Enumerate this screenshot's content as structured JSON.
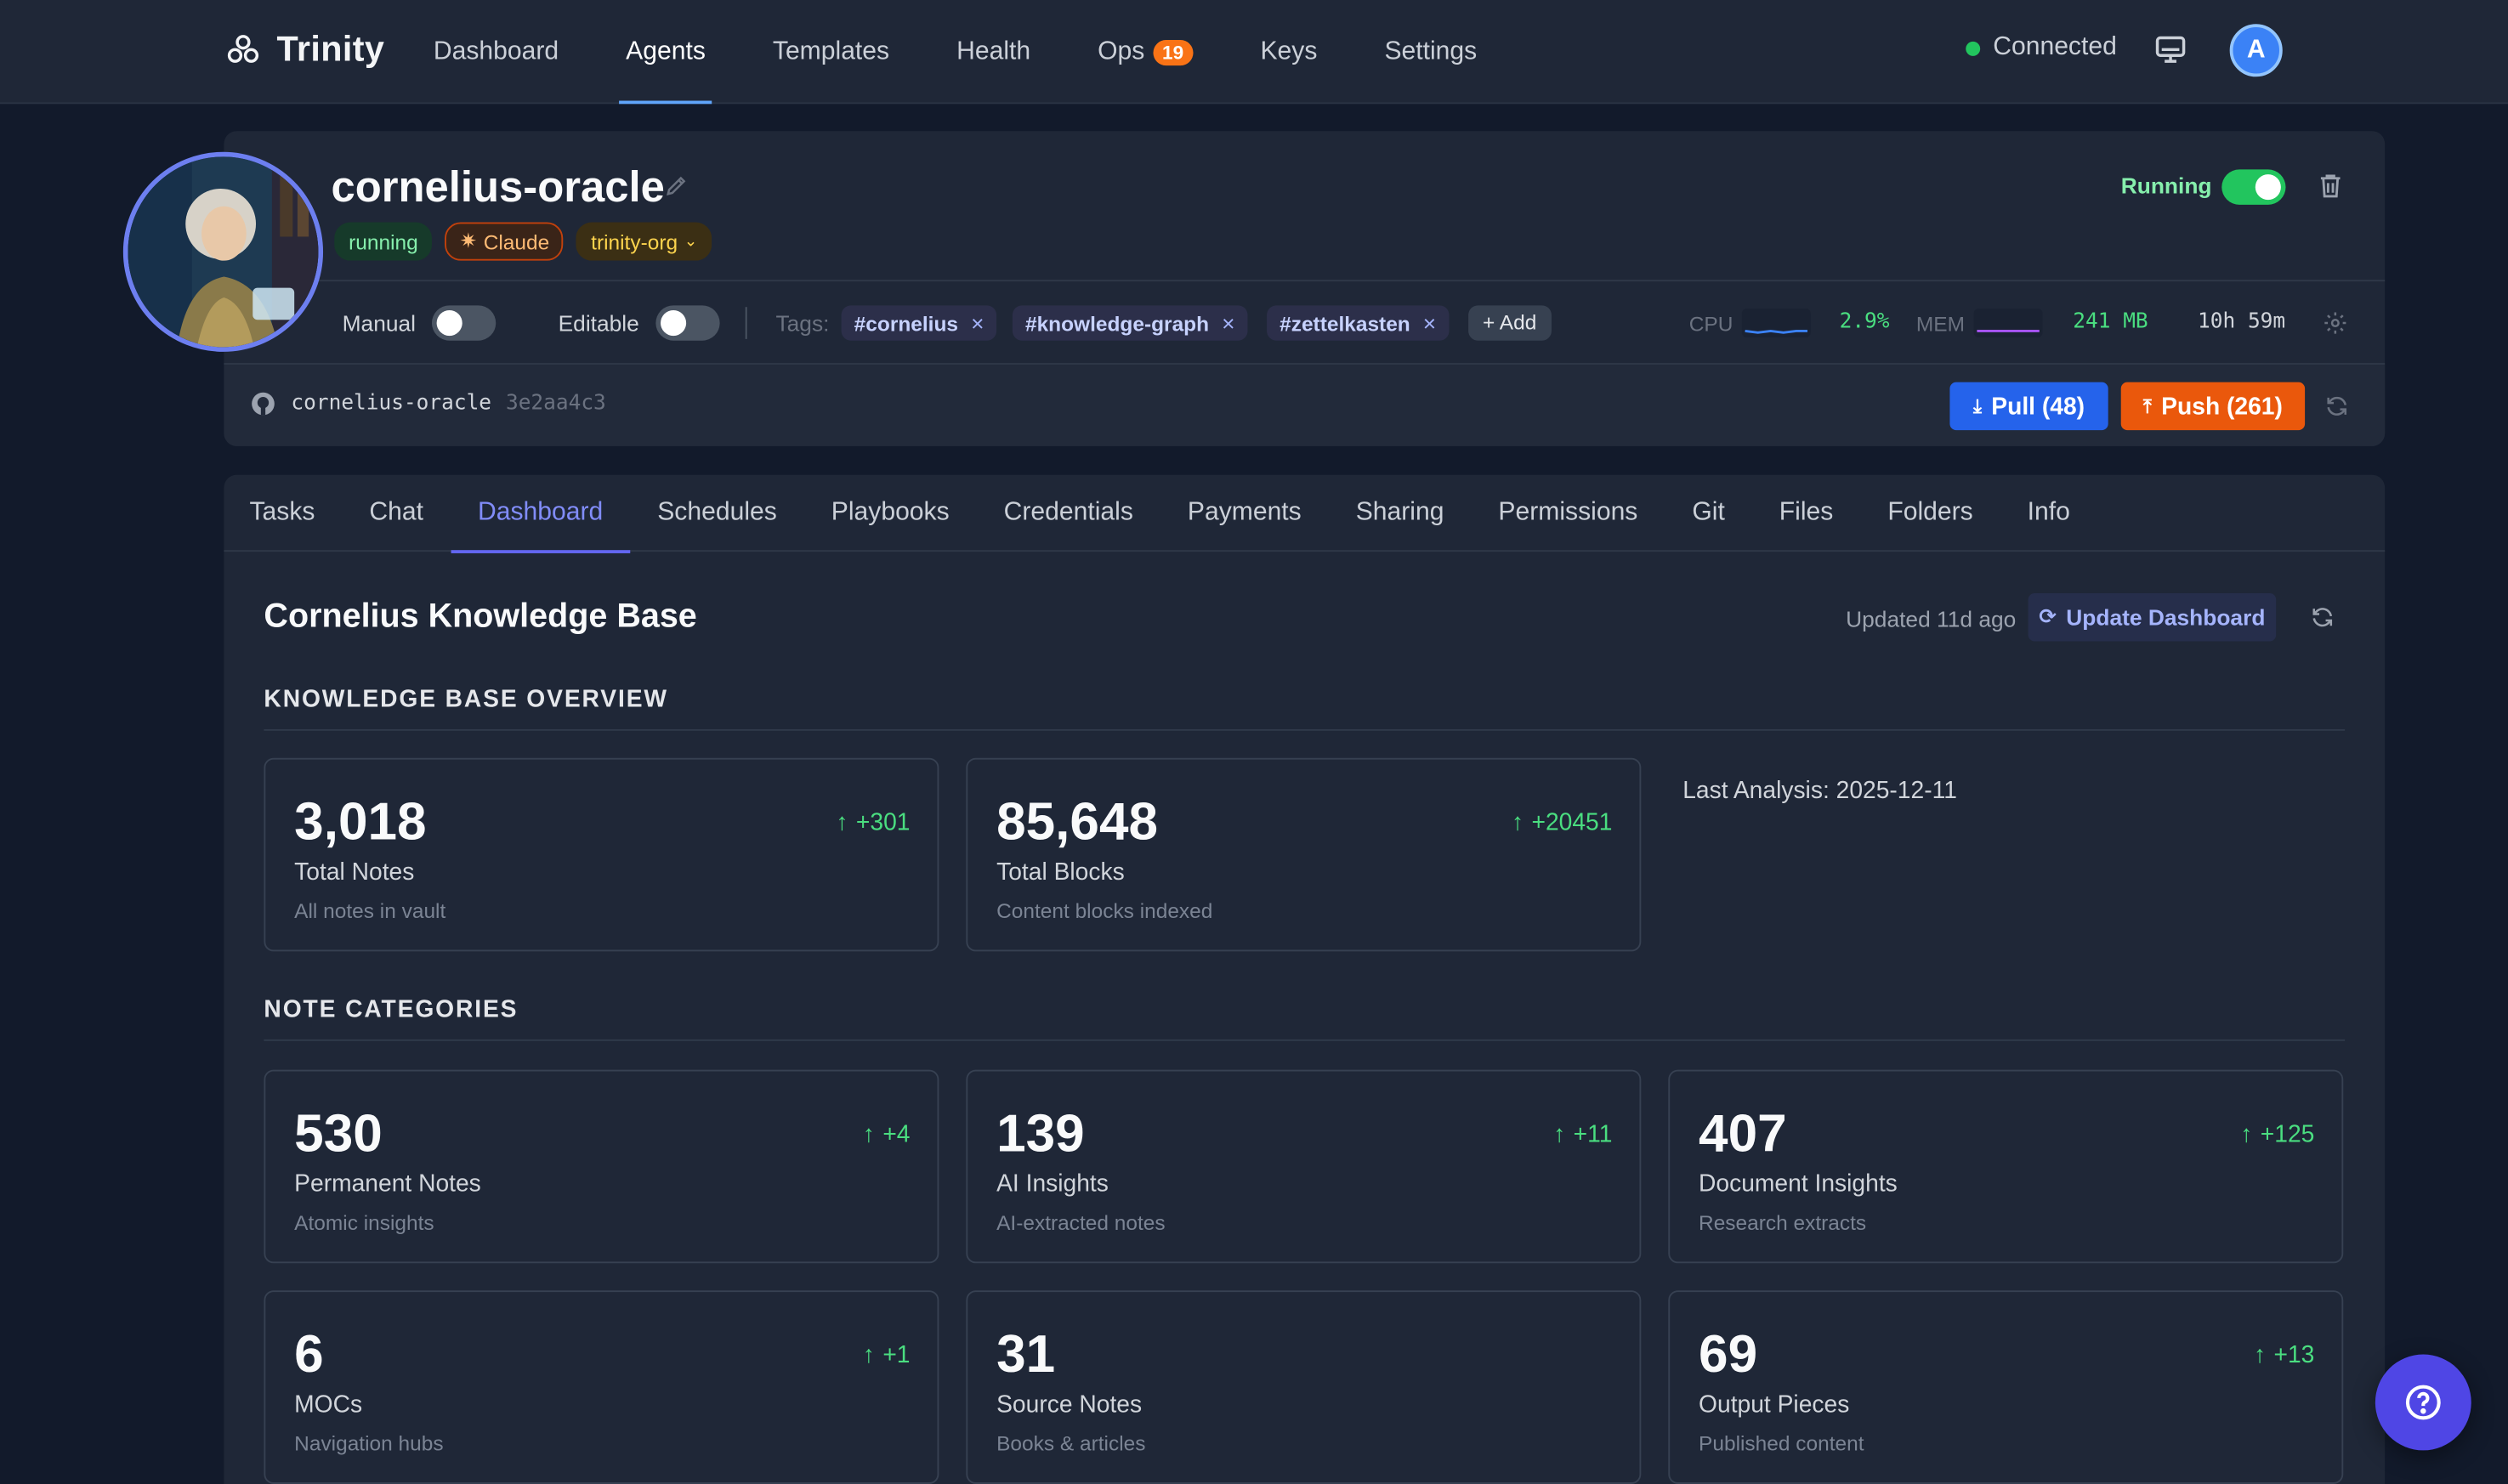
{
  "brand": {
    "name": "Trinity"
  },
  "nav": {
    "items": [
      {
        "label": "Dashboard"
      },
      {
        "label": "Agents"
      },
      {
        "label": "Templates"
      },
      {
        "label": "Health"
      },
      {
        "label": "Ops",
        "badge": "19"
      },
      {
        "label": "Keys"
      },
      {
        "label": "Settings"
      }
    ],
    "active": "Agents",
    "status": "Connected",
    "user_initial": "A"
  },
  "agent": {
    "name": "cornelius-oracle",
    "badges": {
      "status": "running",
      "model": "Claude",
      "org": "trinity-org"
    },
    "run_state": "Running",
    "manual_label": "Manual",
    "editable_label": "Editable",
    "tags_label": "Tags:",
    "tags": [
      "#cornelius",
      "#knowledge-graph",
      "#zettelkasten"
    ],
    "add_tag_label": "+ Add",
    "metrics": {
      "cpu_label": "CPU",
      "cpu_value": "2.9%",
      "mem_label": "MEM",
      "mem_value": "241 MB",
      "uptime": "10h 59m"
    },
    "repo": {
      "name": "cornelius-oracle",
      "sha": "3e2aa4c3"
    },
    "pull_label": "Pull (48)",
    "push_label": "Push (261)"
  },
  "tabs": [
    "Tasks",
    "Chat",
    "Dashboard",
    "Schedules",
    "Playbooks",
    "Credentials",
    "Payments",
    "Sharing",
    "Permissions",
    "Git",
    "Files",
    "Folders",
    "Info"
  ],
  "active_tab": "Dashboard",
  "dashboard": {
    "title": "Cornelius Knowledge Base",
    "updated": "Updated 11d ago",
    "update_button": "Update Dashboard",
    "overview_heading": "KNOWLEDGE BASE OVERVIEW",
    "overview": [
      {
        "value": "3,018",
        "label": "Total Notes",
        "sub": "All notes in vault",
        "delta": "+301"
      },
      {
        "value": "85,648",
        "label": "Total Blocks",
        "sub": "Content blocks indexed",
        "delta": "+20451"
      }
    ],
    "last_analysis": "Last Analysis: 2025-12-11",
    "categories_heading": "NOTE CATEGORIES",
    "categories": [
      {
        "value": "530",
        "label": "Permanent Notes",
        "sub": "Atomic insights",
        "delta": "+4"
      },
      {
        "value": "139",
        "label": "AI Insights",
        "sub": "AI-extracted notes",
        "delta": "+11"
      },
      {
        "value": "407",
        "label": "Document Insights",
        "sub": "Research extracts",
        "delta": "+125"
      },
      {
        "value": "6",
        "label": "MOCs",
        "sub": "Navigation hubs",
        "delta": "+1"
      },
      {
        "value": "31",
        "label": "Source Notes",
        "sub": "Books & articles",
        "delta": ""
      },
      {
        "value": "69",
        "label": "Output Pieces",
        "sub": "Published content",
        "delta": "+13"
      }
    ]
  },
  "colors": {
    "accent": "#6366f1",
    "success": "#22c55e",
    "push": "#ea580c",
    "pull": "#2563eb"
  }
}
